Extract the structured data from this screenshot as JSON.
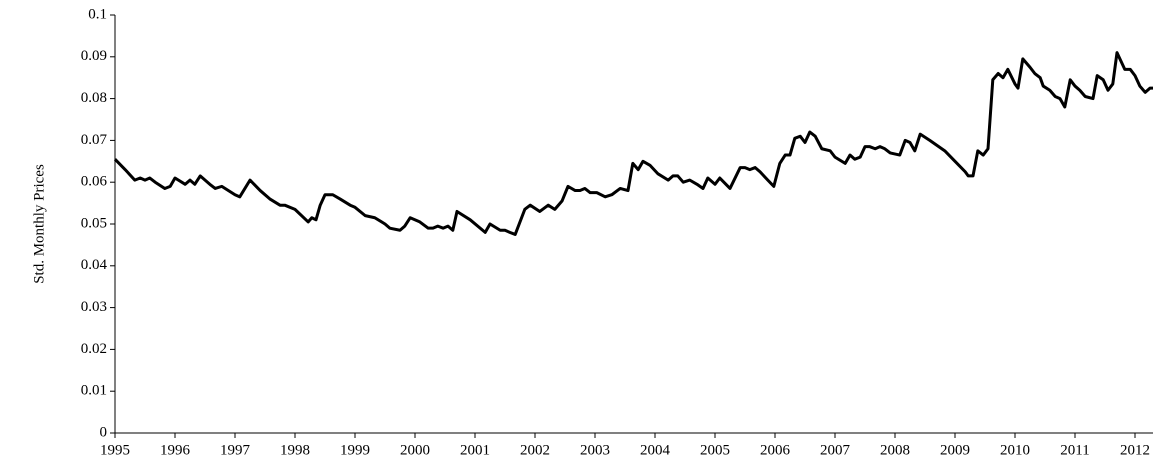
{
  "chart_data": {
    "type": "line",
    "y_label": "Std. Monthly Prices",
    "color": "#000000",
    "xlim": [
      1995,
      2012.3
    ],
    "xticks": [
      1995,
      1996,
      1997,
      1998,
      1999,
      2000,
      2001,
      2002,
      2003,
      2004,
      2005,
      2006,
      2007,
      2008,
      2009,
      2010,
      2011,
      2012
    ],
    "ylim": [
      0,
      0.1
    ],
    "yticks": [
      0,
      0.01,
      0.02,
      0.03,
      0.04,
      0.05,
      0.06,
      0.07,
      0.08,
      0.09,
      0.1
    ],
    "x": [
      1995.0,
      1995.17,
      1995.33,
      1995.42,
      1995.5,
      1995.58,
      1995.67,
      1995.83,
      1995.92,
      1996.0,
      1996.17,
      1996.25,
      1996.33,
      1996.42,
      1996.58,
      1996.67,
      1996.78,
      1997.0,
      1997.08,
      1997.25,
      1997.42,
      1997.58,
      1997.75,
      1997.83,
      1998.0,
      1998.22,
      1998.28,
      1998.35,
      1998.42,
      1998.5,
      1998.63,
      1998.75,
      1998.92,
      1999.0,
      1999.17,
      1999.33,
      1999.5,
      1999.58,
      1999.75,
      1999.83,
      1999.92,
      2000.08,
      2000.22,
      2000.3,
      2000.38,
      2000.47,
      2000.55,
      2000.63,
      2000.7,
      2000.92,
      2001.17,
      2001.25,
      2001.42,
      2001.5,
      2001.58,
      2001.67,
      2001.83,
      2001.92,
      2002.08,
      2002.22,
      2002.33,
      2002.45,
      2002.55,
      2002.67,
      2002.75,
      2002.83,
      2002.92,
      2003.03,
      2003.17,
      2003.28,
      2003.42,
      2003.55,
      2003.63,
      2003.72,
      2003.8,
      2003.92,
      2004.05,
      2004.22,
      2004.3,
      2004.38,
      2004.47,
      2004.58,
      2004.7,
      2004.8,
      2004.88,
      2005.0,
      2005.08,
      2005.25,
      2005.42,
      2005.5,
      2005.58,
      2005.67,
      2005.75,
      2005.88,
      2005.98,
      2006.08,
      2006.17,
      2006.25,
      2006.33,
      2006.42,
      2006.5,
      2006.58,
      2006.67,
      2006.78,
      2006.92,
      2007.0,
      2007.17,
      2007.25,
      2007.33,
      2007.42,
      2007.5,
      2007.58,
      2007.67,
      2007.75,
      2007.83,
      2007.92,
      2008.08,
      2008.17,
      2008.25,
      2008.33,
      2008.42,
      2008.58,
      2008.83,
      2009.0,
      2009.17,
      2009.22,
      2009.3,
      2009.38,
      2009.47,
      2009.55,
      2009.63,
      2009.72,
      2009.8,
      2009.88,
      2010.0,
      2010.05,
      2010.13,
      2010.25,
      2010.33,
      2010.42,
      2010.47,
      2010.58,
      2010.67,
      2010.75,
      2010.83,
      2010.92,
      2011.0,
      2011.08,
      2011.17,
      2011.3,
      2011.37,
      2011.47,
      2011.55,
      2011.63,
      2011.7,
      2011.83,
      2011.92,
      2012.0,
      2012.08,
      2012.17,
      2012.25,
      2012.3
    ],
    "values": [
      0.0655,
      0.063,
      0.0605,
      0.061,
      0.0605,
      0.061,
      0.06,
      0.0585,
      0.059,
      0.061,
      0.0595,
      0.0605,
      0.0595,
      0.0615,
      0.0595,
      0.0585,
      0.059,
      0.057,
      0.0565,
      0.0605,
      0.058,
      0.056,
      0.0545,
      0.0545,
      0.0535,
      0.0505,
      0.0515,
      0.051,
      0.0545,
      0.057,
      0.057,
      0.056,
      0.0545,
      0.054,
      0.052,
      0.0515,
      0.05,
      0.049,
      0.0485,
      0.0495,
      0.0515,
      0.0505,
      0.049,
      0.049,
      0.0495,
      0.049,
      0.0495,
      0.0485,
      0.053,
      0.051,
      0.048,
      0.05,
      0.0485,
      0.0485,
      0.048,
      0.0475,
      0.0535,
      0.0545,
      0.053,
      0.0545,
      0.0535,
      0.0555,
      0.059,
      0.058,
      0.058,
      0.0585,
      0.0575,
      0.0575,
      0.0565,
      0.057,
      0.0585,
      0.058,
      0.0645,
      0.063,
      0.065,
      0.064,
      0.062,
      0.0605,
      0.0615,
      0.0615,
      0.06,
      0.0605,
      0.0595,
      0.0585,
      0.061,
      0.0595,
      0.061,
      0.0585,
      0.0635,
      0.0635,
      0.063,
      0.0635,
      0.0625,
      0.0605,
      0.059,
      0.0645,
      0.0665,
      0.0665,
      0.0705,
      0.071,
      0.0695,
      0.072,
      0.071,
      0.068,
      0.0675,
      0.066,
      0.0645,
      0.0665,
      0.0655,
      0.066,
      0.0685,
      0.0685,
      0.068,
      0.0685,
      0.068,
      0.067,
      0.0665,
      0.07,
      0.0695,
      0.0675,
      0.0715,
      0.07,
      0.0675,
      0.065,
      0.0625,
      0.0615,
      0.0615,
      0.0675,
      0.0665,
      0.068,
      0.0845,
      0.086,
      0.085,
      0.087,
      0.0835,
      0.0825,
      0.0895,
      0.0875,
      0.086,
      0.085,
      0.083,
      0.082,
      0.0805,
      0.08,
      0.078,
      0.0845,
      0.083,
      0.082,
      0.0805,
      0.08,
      0.0855,
      0.0845,
      0.082,
      0.0835,
      0.091,
      0.087,
      0.087,
      0.0855,
      0.083,
      0.0815,
      0.0825,
      0.0825
    ]
  }
}
